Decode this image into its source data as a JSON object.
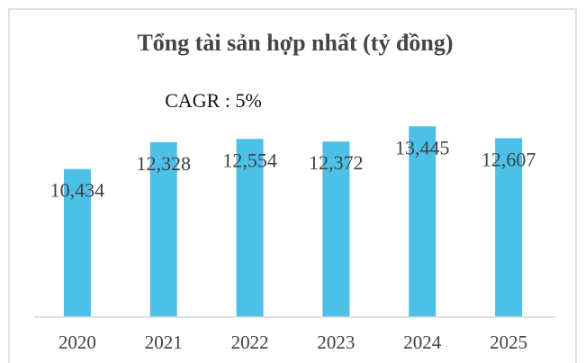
{
  "chart_data": {
    "type": "bar",
    "title": "Tổng tài sản hợp nhất (tỷ đồng)",
    "annotation": "CAGR : 5%",
    "categories": [
      "2020",
      "2021",
      "2022",
      "2023",
      "2024",
      "2025"
    ],
    "values": [
      10434,
      12328,
      12554,
      12372,
      13445,
      12607
    ],
    "value_labels": [
      "10,434",
      "12,328",
      "12,554",
      "12,372",
      "13,445",
      "12,607"
    ],
    "color": "#4dc0e8",
    "ylim": [
      0,
      16000
    ]
  }
}
